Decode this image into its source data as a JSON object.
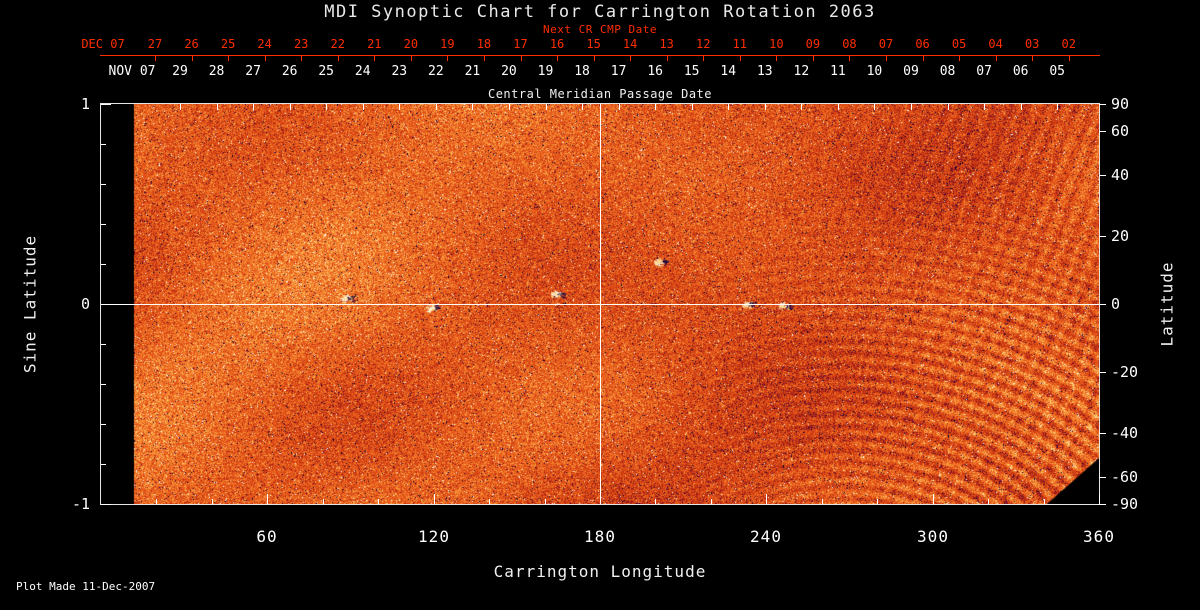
{
  "colors": {
    "background": "#000000",
    "foreground": "#ffffff",
    "accent_red": "#ff2d00"
  },
  "title": "MDI Synoptic Chart for Carrington Rotation 2063",
  "next_cr_axis": {
    "label": "Next CR CMP Date",
    "month": "DEC 07",
    "days": [
      "27",
      "26",
      "25",
      "24",
      "23",
      "22",
      "21",
      "20",
      "19",
      "18",
      "17",
      "16",
      "15",
      "14",
      "13",
      "12",
      "11",
      "10",
      "09",
      "08",
      "07",
      "06",
      "05",
      "04",
      "03",
      "02"
    ]
  },
  "cmp_axis": {
    "label": "Central Meridian Passage Date",
    "month": "NOV 07",
    "days": [
      "29",
      "28",
      "27",
      "26",
      "25",
      "24",
      "23",
      "22",
      "21",
      "20",
      "19",
      "18",
      "17",
      "16",
      "15",
      "14",
      "13",
      "12",
      "11",
      "10",
      "09",
      "08",
      "07",
      "06",
      "05"
    ]
  },
  "footer": {
    "note": "Plot Made 11-Dec-2007"
  },
  "chart_data": {
    "type": "heatmap",
    "title": "MDI Synoptic Chart for Carrington Rotation 2063",
    "xlabel": "Carrington Longitude",
    "ylabel_left": "Sine Latitude",
    "ylabel_right": "Latitude",
    "xlim": [
      0,
      360
    ],
    "x_major_ticks": [
      60,
      120,
      180,
      240,
      300,
      360
    ],
    "x_minor_tick_step": 20,
    "sine_latitude_ticks": [
      1,
      0,
      -1
    ],
    "sine_latitude_minor_ticks": [
      0.8,
      0.6,
      0.4,
      0.2,
      -0.2,
      -0.4,
      -0.6,
      -0.8
    ],
    "latitude_ticks": [
      90,
      60,
      40,
      20,
      0,
      -20,
      -40,
      -60,
      -90
    ],
    "reference_lines": {
      "longitude": 180,
      "sine_latitude": 0
    },
    "data_start_longitude": 12,
    "grid": "off",
    "legend_position": "none",
    "description": "SOHO/MDI photospheric magnetic field synoptic map for Carrington rotation 2063, rendered in a red-orange heat colormap. Speckled magnetogram noise with dark blue-purple and bright yellow-white salt-and-pepper extremes, small bright active regions near the equator, p-mode ripple artifacts toward the early-rotation (right) side, and white reference lines at Carrington longitude 180 and the solar equator.",
    "colormap_stops": [
      "#050028",
      "#2a0550",
      "#5a0a3c",
      "#961919",
      "#cd3710",
      "#e65519",
      "#f27828",
      "#faaa46",
      "#ffdc8c",
      "#ffffff"
    ],
    "active_regions": [
      {
        "longitude": 201,
        "sine_latitude": 0.21
      },
      {
        "longitude": 164,
        "sine_latitude": 0.05
      },
      {
        "longitude": 119,
        "sine_latitude": -0.02
      },
      {
        "longitude": 88,
        "sine_latitude": 0.03
      },
      {
        "longitude": 233,
        "sine_latitude": 0.0
      },
      {
        "longitude": 246,
        "sine_latitude": -0.01
      }
    ]
  }
}
